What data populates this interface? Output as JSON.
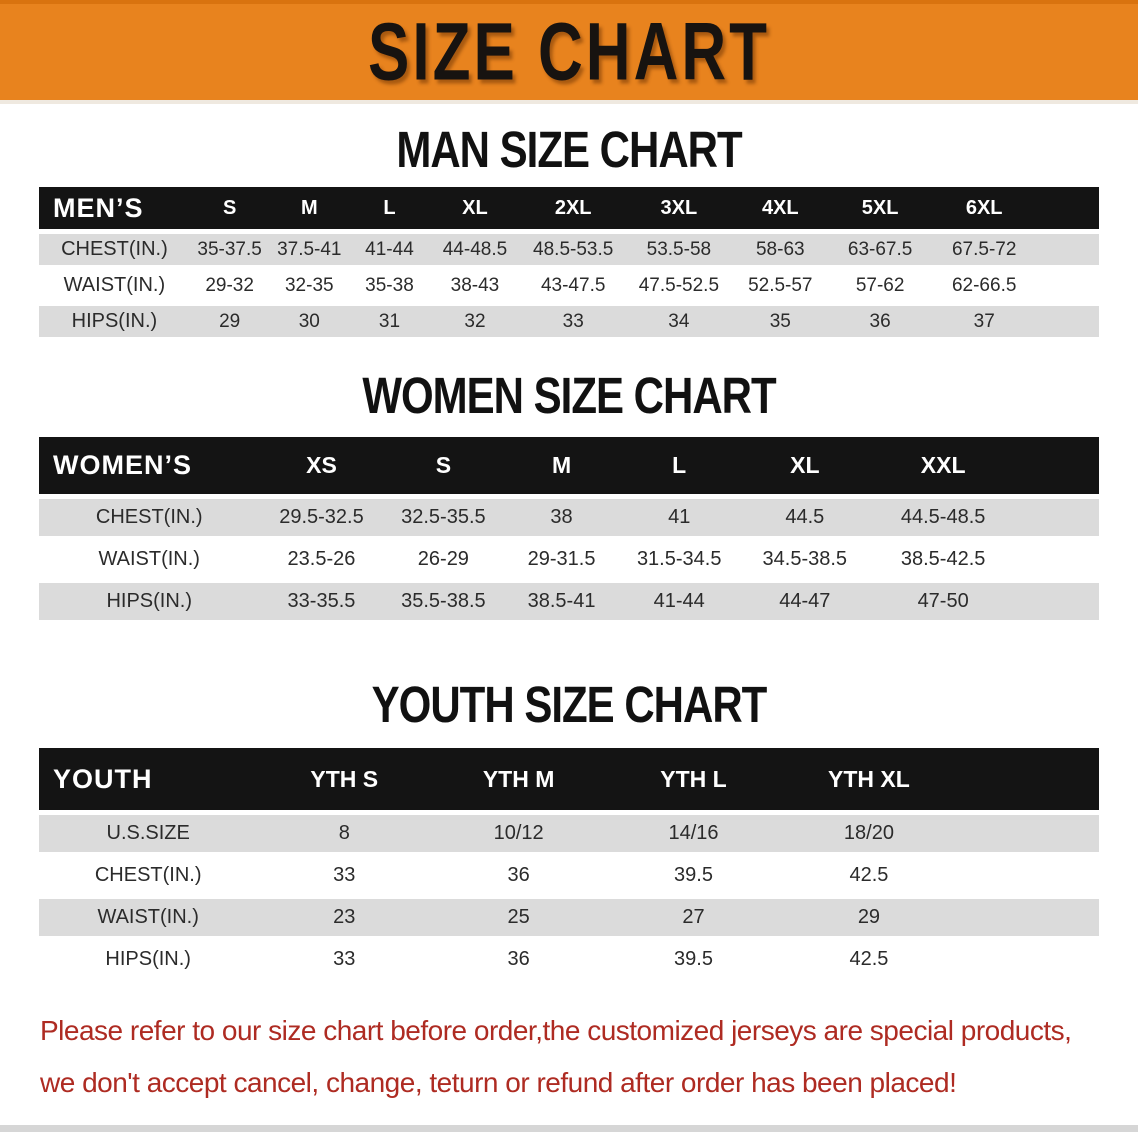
{
  "banner": {
    "title": "SIZE CHART"
  },
  "colors": {
    "banner-bg": "#E8831E",
    "banner-edge": "#D9730F",
    "header-bar": "#141414",
    "stripe": "#DBDBDB",
    "heading-color": "#111111",
    "cell-color": "#2B2B2B",
    "notice-color": "#AE2B22",
    "bottom-strip": "#D6D6D6"
  },
  "sections": [
    {
      "heading": "MAN SIZE CHART",
      "table": {
        "header_label": "MEN’S",
        "columns": [
          "S",
          "M",
          "L",
          "XL",
          "2XL",
          "3XL",
          "4XL",
          "5XL",
          "6XL"
        ],
        "rows": [
          {
            "label": "CHEST(IN.)",
            "values": [
              "35-37.5",
              "37.5-41",
              "41-44",
              "44-48.5",
              "48.5-53.5",
              "53.5-58",
              "58-63",
              "63-67.5",
              "67.5-72"
            ]
          },
          {
            "label": "WAIST(IN.)",
            "values": [
              "29-32",
              "32-35",
              "35-38",
              "38-43",
              "43-47.5",
              "47.5-52.5",
              "52.5-57",
              "57-62",
              "62-66.5"
            ]
          },
          {
            "label": "HIPS(IN.)",
            "values": [
              "29",
              "30",
              "31",
              "32",
              "33",
              "34",
              "35",
              "36",
              "37"
            ]
          }
        ]
      }
    },
    {
      "heading": "WOMEN SIZE CHART",
      "table": {
        "header_label": "WOMEN’S",
        "columns": [
          "XS",
          "S",
          "M",
          "L",
          "XL",
          "XXL"
        ],
        "rows": [
          {
            "label": "CHEST(IN.)",
            "values": [
              "29.5-32.5",
              "32.5-35.5",
              "38",
              "41",
              "44.5",
              "44.5-48.5"
            ]
          },
          {
            "label": "WAIST(IN.)",
            "values": [
              "23.5-26",
              "26-29",
              "29-31.5",
              "31.5-34.5",
              "34.5-38.5",
              "38.5-42.5"
            ]
          },
          {
            "label": "HIPS(IN.)",
            "values": [
              "33-35.5",
              "35.5-38.5",
              "38.5-41",
              "41-44",
              "44-47",
              "47-50"
            ]
          }
        ]
      }
    },
    {
      "heading": "YOUTH SIZE CHART",
      "table": {
        "header_label": "YOUTH",
        "columns": [
          "YTH S",
          "YTH M",
          "YTH L",
          "YTH XL"
        ],
        "rows": [
          {
            "label": "U.S.SIZE",
            "values": [
              "8",
              "10/12",
              "14/16",
              "18/20"
            ]
          },
          {
            "label": "CHEST(IN.)",
            "values": [
              "33",
              "36",
              "39.5",
              "42.5"
            ]
          },
          {
            "label": "WAIST(IN.)",
            "values": [
              "23",
              "25",
              "27",
              "29"
            ]
          },
          {
            "label": "HIPS(IN.)",
            "values": [
              "33",
              "36",
              "39.5",
              "42.5"
            ]
          }
        ]
      }
    }
  ],
  "footer": {
    "line1": "Please refer to our size chart before order,the customized jerseys are special products,",
    "line2": "we don't accept cancel, change, teturn or refund after order has been placed!"
  }
}
